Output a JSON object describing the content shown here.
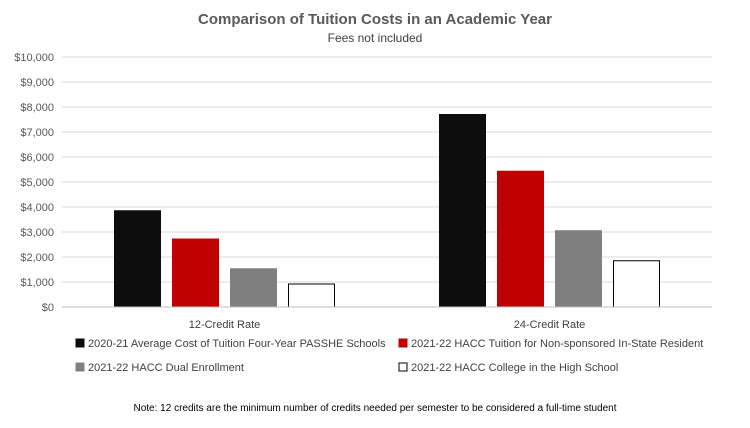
{
  "chart_data": {
    "type": "bar",
    "title": "Comparison of Tuition Costs in an Academic Year",
    "subtitle": "Fees not included",
    "categories": [
      "12-Credit Rate",
      "24-Credit Rate"
    ],
    "ylim": [
      0,
      10000
    ],
    "yticks": [
      {
        "value": 0,
        "label": "$0"
      },
      {
        "value": 1000,
        "label": "$1,000"
      },
      {
        "value": 2000,
        "label": "$2,000"
      },
      {
        "value": 3000,
        "label": "$3,000"
      },
      {
        "value": 4000,
        "label": "$4,000"
      },
      {
        "value": 5000,
        "label": "$5,000"
      },
      {
        "value": 6000,
        "label": "$6,000"
      },
      {
        "value": 7000,
        "label": "$7,000"
      },
      {
        "value": 8000,
        "label": "$8,000"
      },
      {
        "value": 9000,
        "label": "$9,000"
      },
      {
        "value": 10000,
        "label": "$10,000"
      }
    ],
    "grid": true,
    "legend_position": "bottom",
    "series": [
      {
        "name": "2020-21 Average Cost of Tuition Four-Year PASSHE Schools",
        "values": [
          3850,
          7700
        ],
        "color": "#0d0d0d",
        "outline": "#0d0d0d"
      },
      {
        "name": "2021-22 HACC Tuition for Non-sponsored In-State Resident",
        "values": [
          2720,
          5430
        ],
        "color": "#c00000",
        "outline": "#c00000"
      },
      {
        "name": "2021-22 HACC Dual Enrollment",
        "values": [
          1530,
          3050
        ],
        "color": "#7f7f7f",
        "outline": "#7f7f7f"
      },
      {
        "name": "2021-22 HACC College in the High School",
        "values": [
          920,
          1850
        ],
        "color": "#ffffff",
        "outline": "#000000"
      }
    ],
    "note": "Note: 12 credits are the minimum number of credits needed per semester to be considered a full-time student"
  }
}
